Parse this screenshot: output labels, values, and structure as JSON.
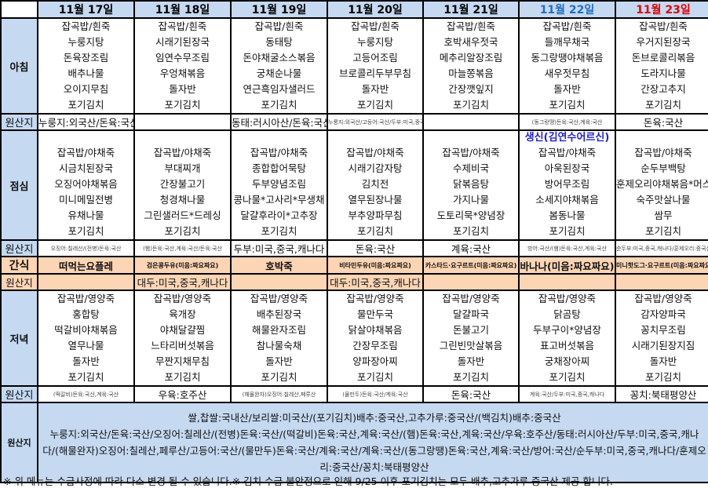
{
  "labels": {
    "breakfast": "아침",
    "lunch": "점심",
    "snack": "간식",
    "dinner": "저녁",
    "origin": "원산지"
  },
  "colors": {
    "header_bg": "#c5d9f1",
    "snack_bg": "#fcd5b4",
    "saturday": "#1f6fc0",
    "sunday": "#e00000",
    "special_note": "#2020d0"
  },
  "days": [
    {
      "date": "11월 17일",
      "color": "#000000",
      "breakfast": [
        "잡곡밥/흰죽",
        "누룽지탕",
        "돈육장조림",
        "배추나물",
        "오이지무침",
        "포기김치"
      ],
      "breakfast_origin": "누룽지:외국산/돈육:국산",
      "breakfast_origin_size": "mid",
      "lunch_note": "",
      "lunch": [
        "잡곡밥/야채죽",
        "시금치된장국",
        "오징어야채볶음",
        "미니메밀전병",
        "유채나물",
        "포기김치"
      ],
      "lunch_origin": "오징어:칠레산/(전병)돈육:국산",
      "lunch_origin_size": "small",
      "snack": "떠먹는요플레",
      "snack_size": "bold",
      "snack_origin": "",
      "dinner": [
        "잡곡밥/영양죽",
        "홍합탕",
        "떡갈비야채볶음",
        "열무나물",
        "돌자반",
        "포기김치"
      ],
      "dinner_origin": "(떡갈비)돈육:국산,계육:국산",
      "dinner_origin_size": "small"
    },
    {
      "date": "11월 18일",
      "color": "#000000",
      "breakfast": [
        "잡곡밥/흰죽",
        "시래기된장국",
        "임연수무조림",
        "우엉채볶음",
        "돌자반",
        "포기김치"
      ],
      "breakfast_origin": "",
      "breakfast_origin_size": "mid",
      "lunch_note": "",
      "lunch": [
        "잡곡밥/야채죽",
        "부대찌개",
        "간장불고기",
        "청경채나물",
        "그린샐러드*드레싱",
        "포기김치"
      ],
      "lunch_origin": "(햄)돈육:국산,계육:국산/돈육:국산",
      "lunch_origin_size": "small",
      "snack": "검은콩두유(미음:짜요짜요)",
      "snack_size": "tiny",
      "snack_origin": "대두:미국,중국,캐나다",
      "dinner": [
        "잡곡밥/영양죽",
        "육개장",
        "야채달걀찜",
        "느타리버섯볶음",
        "무짠지채무침",
        "포기김치"
      ],
      "dinner_origin": "우육:호주산",
      "dinner_origin_size": "mid"
    },
    {
      "date": "11월 19일",
      "color": "#000000",
      "breakfast": [
        "잡곡밥/흰죽",
        "동태탕",
        "돈야채굴소스볶음",
        "궁채순나물",
        "연근흑임자샐러드",
        "포기김치"
      ],
      "breakfast_origin": "동태:러시아산/돈육:국산",
      "breakfast_origin_size": "mid",
      "lunch_note": "",
      "lunch": [
        "잡곡밥/야채죽",
        "종합합어묵탕",
        "두부양념조림",
        "콩나물*고사리*무생채",
        "달걀후라이*고추장",
        "포기김치"
      ],
      "lunch_origin": "두부:미국,중국,캐나다",
      "lunch_origin_size": "mid",
      "snack": "호박죽",
      "snack_size": "bold",
      "snack_origin": "",
      "dinner": [
        "잡곡밥/영양죽",
        "배추된장국",
        "해물완자조림",
        "참나물숙채",
        "돌자반",
        "포기김치"
      ],
      "dinner_origin": "(해물완자)오징어:칠레산,페루산",
      "dinner_origin_size": "small"
    },
    {
      "date": "11월 20일",
      "color": "#000000",
      "breakfast": [
        "잡곡밥/흰죽",
        "누룽지탕",
        "고등어조림",
        "브로콜리두부무침",
        "돌자반",
        "포기김치"
      ],
      "breakfast_origin": "누룽지:외국산/고등어:국산/두부:미국,중국,캐나다",
      "breakfast_origin_size": "small",
      "lunch_note": "",
      "lunch": [
        "잡곡밥/야채죽",
        "시래기감자탕",
        "김치전",
        "열무된장나물",
        "부추양파무침",
        "포기김치"
      ],
      "lunch_origin": "돈육:국산",
      "lunch_origin_size": "mid",
      "snack": "비타민두유(미음:짜요짜요)",
      "snack_size": "tiny",
      "snack_origin": "대두:미국,중국,캐나다",
      "dinner": [
        "잡곡밥/영양죽",
        "물만두국",
        "닭살야채볶음",
        "간장무조림",
        "양파장아찌",
        "포기김치"
      ],
      "dinner_origin": "(물만두)돈육:국산/계육:국산",
      "dinner_origin_size": "small"
    },
    {
      "date": "11월 21일",
      "color": "#000000",
      "breakfast": [
        "잡곡밥/흰죽",
        "호박새우젓국",
        "메추리알장조림",
        "마늘쫑볶음",
        "간장깻잎지",
        "포기김치"
      ],
      "breakfast_origin": "",
      "breakfast_origin_size": "mid",
      "lunch_note": "",
      "lunch": [
        "잡곡밥/야채죽",
        "수제비국",
        "닭볶음탕",
        "가지나물",
        "도토리묵*양념장",
        "포기김치"
      ],
      "lunch_origin": "계육:국산",
      "lunch_origin_size": "mid",
      "snack": "카스타드·요구르트(미음:짜요짜요)",
      "snack_size": "tiny",
      "snack_origin": "",
      "dinner": [
        "잡곡밥/영양죽",
        "달걀파국",
        "돈불고기",
        "그린빈맛살볶음",
        "돌자반",
        "포기김치"
      ],
      "dinner_origin": "돈육:국산",
      "dinner_origin_size": "mid"
    },
    {
      "date": "11월 22일",
      "color": "#1f6fc0",
      "breakfast": [
        "잡곡밥/흰죽",
        "들깨무채국",
        "동그랑땡야채볶음",
        "새우젓무침",
        "돌자반",
        "포기김치"
      ],
      "breakfast_origin": "(동그랑땡)돈육:국산,계육:국산",
      "breakfast_origin_size": "small",
      "lunch_note": "생신(김연수어르신)",
      "lunch": [
        "잡곡밥/야채죽",
        "아욱된장국",
        "방어무조림",
        "소세지야채볶음",
        "봄동나물",
        "포기김치"
      ],
      "lunch_origin": "방어:국산/(햄)돈육:국산,계육:국산",
      "lunch_origin_size": "small",
      "snack": "바나나(미음:짜요짜요)",
      "snack_size": "bold",
      "snack_origin": "",
      "dinner": [
        "잡곡밥/영양죽",
        "닭곰탕",
        "두부구이*양념장",
        "표고버섯볶음",
        "궁채장아찌",
        "포기김치"
      ],
      "dinner_origin": "계육:국산/두부:미국,중국,캐나다",
      "dinner_origin_size": "small"
    },
    {
      "date": "11월 23일",
      "color": "#e00000",
      "breakfast": [
        "잡곡밥/흰죽",
        "우거지된장국",
        "돈브로콜리볶음",
        "도라지나물",
        "간장고추지",
        "포기김치"
      ],
      "breakfast_origin": "돈육:국산",
      "breakfast_origin_size": "mid",
      "lunch_note": "",
      "lunch": [
        "잡곡밥/야채죽",
        "순두부백탕",
        "훈제오리야채볶음*머스s",
        "숙주맛살나물",
        "쌈무",
        "포기김치"
      ],
      "lunch_origin": "순두부:미국,중국,캐나다/훈제오리:중국산",
      "lunch_origin_size": "small",
      "snack": "미니핫도그·요구르트(미음:짜요짜요)",
      "snack_size": "tiny",
      "snack_origin": "",
      "dinner": [
        "잡곡밥/영양죽",
        "감자양파국",
        "꽁치무조림",
        "시래기된장지짐",
        "돌자반",
        "포기김치"
      ],
      "dinner_origin": "꽁치:북태평양산",
      "dinner_origin_size": "mid"
    }
  ],
  "origin_summary": {
    "label": "원산지",
    "lines": [
      "쌀,찹쌀:국내산/보리쌀:미국산/(포기김치)배추:중국산,고추가루:중국산/(백김치)배추:중국산",
      "누룽지:외국산/돈육:국산/오징어:칠레산/(전병)돈육:국산/(떡갈비)돈육:국산,계육:국산/(햄)돈육:국산,계육:국산/우육:호주산/동태:러시아산/두부:미국,중국,캐나다/(해물완자)오징어:칠레산,페루산/고등어:국산/(물만두)돈육:국산/계육:국산/계육:국산/(동그랑땡)돈육:국산,계육:국산/방어:국산/순두부:미국,중국,캐나다/훈제오리:중국산/꽁치:북태평양산"
    ]
  },
  "footer": "※ 위 메뉴는 수급사정에 따라 다소 변경 될 수 있습니다.※  김치 수급 불안정으로 인해 9/25 이후 포기김치는 모두 배추,고추가루 중국산 제공 합니다."
}
